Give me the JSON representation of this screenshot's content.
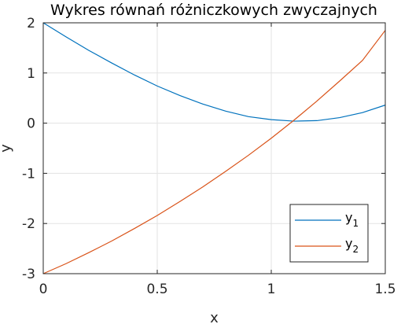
{
  "chart_data": {
    "type": "line",
    "title": "Wykres równań różniczkowych zwyczajnych",
    "xlabel": "x",
    "ylabel": "y",
    "xlim": [
      0,
      1.5
    ],
    "ylim": [
      -3,
      2
    ],
    "xticks": [
      0,
      0.5,
      1,
      1.5
    ],
    "xtick_labels": [
      "0",
      "0.5",
      "1",
      "1.5"
    ],
    "yticks": [
      -3,
      -2,
      -1,
      0,
      1,
      2
    ],
    "ytick_labels": [
      "-3",
      "-2",
      "-1",
      "0",
      "1",
      "2"
    ],
    "grid": true,
    "legend_position": "bottom-right",
    "series": [
      {
        "name": "y",
        "subscript": "1",
        "color": "#0072BD",
        "x": [
          0,
          0.1,
          0.2,
          0.3,
          0.4,
          0.5,
          0.6,
          0.7,
          0.8,
          0.9,
          1.0,
          1.1,
          1.2,
          1.3,
          1.4,
          1.5
        ],
        "y": [
          2.0,
          1.72,
          1.45,
          1.2,
          0.96,
          0.74,
          0.55,
          0.38,
          0.24,
          0.13,
          0.07,
          0.04,
          0.05,
          0.11,
          0.21,
          0.36
        ]
      },
      {
        "name": "y",
        "subscript": "2",
        "color": "#D95319",
        "x": [
          0,
          0.1,
          0.2,
          0.3,
          0.4,
          0.5,
          0.6,
          0.7,
          0.8,
          0.9,
          1.0,
          1.1,
          1.2,
          1.3,
          1.4,
          1.5
        ],
        "y": [
          -3.0,
          -2.8,
          -2.58,
          -2.35,
          -2.1,
          -1.84,
          -1.56,
          -1.27,
          -0.96,
          -0.64,
          -0.3,
          0.06,
          0.44,
          0.84,
          1.25,
          1.85
        ]
      }
    ]
  }
}
